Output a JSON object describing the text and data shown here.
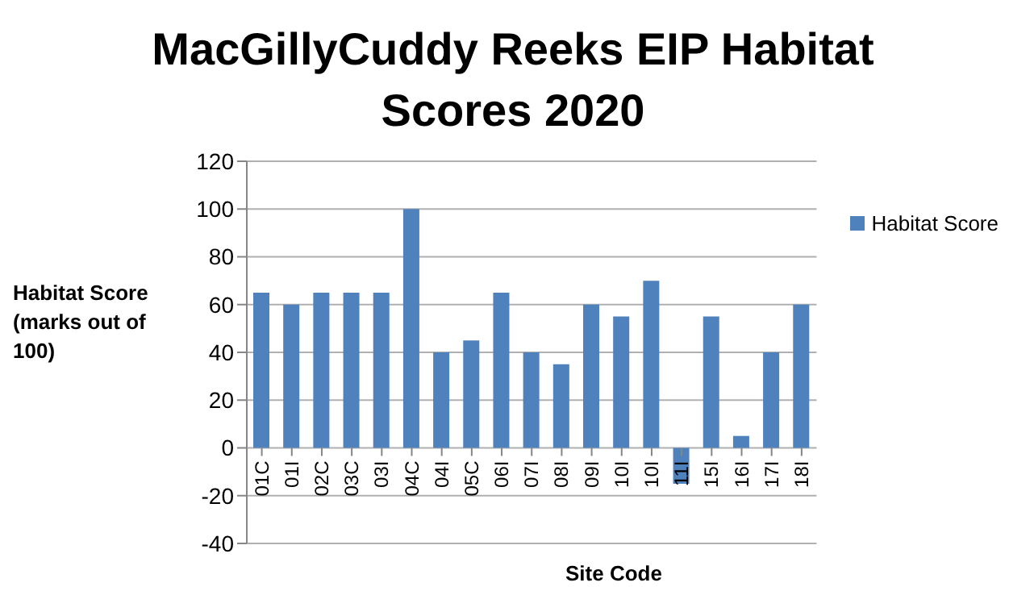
{
  "chart_data": {
    "type": "bar",
    "title": "MacGillyCuddy Reeks EIP Habitat Scores 2020",
    "xlabel": "Site Code",
    "ylabel": "Habitat Score (marks out of 100)",
    "categories": [
      "01C",
      "01I",
      "02C",
      "03C",
      "03I",
      "04C",
      "04I",
      "05C",
      "06I",
      "07I",
      "08I",
      "09I",
      "10I",
      "10I",
      "11I",
      "15I",
      "16I",
      "17I",
      "18I"
    ],
    "series": [
      {
        "name": "Habitat Score",
        "color": "#4f81bd",
        "values": [
          65,
          60,
          65,
          65,
          65,
          100,
          40,
          45,
          65,
          40,
          35,
          60,
          55,
          70,
          -15,
          55,
          5,
          40,
          60
        ]
      }
    ],
    "ylim": [
      -40,
      120
    ],
    "yticks": [
      -40,
      -20,
      0,
      20,
      40,
      60,
      80,
      100,
      120
    ],
    "grid": "y",
    "legend": "top right"
  }
}
